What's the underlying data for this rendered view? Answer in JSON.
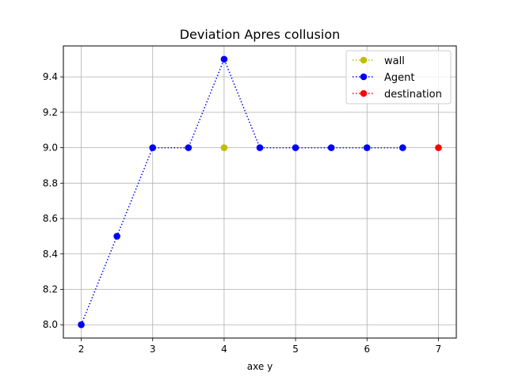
{
  "chart_data": {
    "type": "line",
    "title": "Deviation Apres collusion",
    "xlabel": "axe y",
    "ylabel": "",
    "xlim": [
      1.75,
      7.25
    ],
    "ylim": [
      7.925,
      9.575
    ],
    "xticks": [
      2,
      3,
      4,
      5,
      6,
      7
    ],
    "yticks": [
      8.0,
      8.2,
      8.4,
      8.6,
      8.8,
      9.0,
      9.2,
      9.4
    ],
    "xtick_labels": [
      "2",
      "3",
      "4",
      "5",
      "6",
      "7"
    ],
    "ytick_labels": [
      "8.0",
      "8.2",
      "8.4",
      "8.6",
      "8.8",
      "9.0",
      "9.2",
      "9.4"
    ],
    "grid": true,
    "legend_position": "top-right",
    "series": [
      {
        "name": "wall",
        "color": "#bfbf00",
        "linestyle": "dotted",
        "marker": "circle",
        "x": [
          4
        ],
        "y": [
          9.0
        ]
      },
      {
        "name": "Agent",
        "color": "#0000ff",
        "linestyle": "dotted",
        "marker": "circle",
        "x": [
          2,
          2.5,
          3,
          3.5,
          4,
          4.5,
          5,
          5.5,
          6,
          6.5
        ],
        "y": [
          8.0,
          8.5,
          9.0,
          9.0,
          9.5,
          9.0,
          9.0,
          9.0,
          9.0,
          9.0
        ]
      },
      {
        "name": "destination",
        "color": "#ff0000",
        "linestyle": "dotted",
        "marker": "circle",
        "x": [
          7
        ],
        "y": [
          9.0
        ]
      }
    ]
  }
}
